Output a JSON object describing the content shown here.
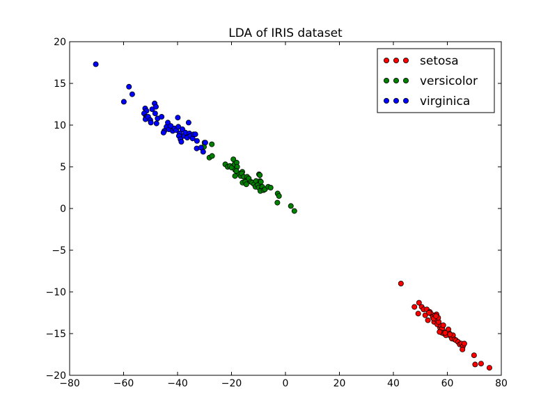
{
  "chart_data": {
    "type": "scatter",
    "title": "LDA of IRIS dataset",
    "xlabel": "",
    "ylabel": "",
    "xlim": [
      -80,
      80
    ],
    "ylim": [
      -20,
      20
    ],
    "xticks": [
      -80,
      -60,
      -40,
      -20,
      0,
      20,
      40,
      60,
      80
    ],
    "yticks": [
      -20,
      -15,
      -10,
      -5,
      0,
      5,
      10,
      15,
      20
    ],
    "xtick_labels": [
      "−80",
      "−60",
      "−40",
      "−20",
      "0",
      "20",
      "40",
      "60",
      "80"
    ],
    "ytick_labels": [
      "−20",
      "−15",
      "−10",
      "−5",
      "0",
      "5",
      "10",
      "15",
      "20"
    ],
    "grid": false,
    "legend_position": "top-right",
    "series": [
      {
        "name": "setosa",
        "color": "#ff0000",
        "points": [
          [
            42.8,
            -9.0
          ],
          [
            47.8,
            -11.8
          ],
          [
            49.5,
            -11.3
          ],
          [
            49.2,
            -12.6
          ],
          [
            50.5,
            -11.8
          ],
          [
            51.2,
            -12.1
          ],
          [
            51.8,
            -12.8
          ],
          [
            52.4,
            -12.1
          ],
          [
            52.8,
            -13.4
          ],
          [
            53.5,
            -12.4
          ],
          [
            53.9,
            -12.6
          ],
          [
            54.6,
            -13.0
          ],
          [
            55.1,
            -13.6
          ],
          [
            55.4,
            -12.8
          ],
          [
            56.0,
            -13.3
          ],
          [
            56.3,
            -13.9
          ],
          [
            56.8,
            -13.6
          ],
          [
            57.3,
            -14.3
          ],
          [
            57.7,
            -14.1
          ],
          [
            58.1,
            -14.4
          ],
          [
            58.0,
            -14.9
          ],
          [
            58.8,
            -15.0
          ],
          [
            59.5,
            -15.2
          ],
          [
            60.0,
            -14.7
          ],
          [
            60.4,
            -14.5
          ],
          [
            60.8,
            -15.0
          ],
          [
            61.2,
            -15.3
          ],
          [
            61.7,
            -15.6
          ],
          [
            62.1,
            -15.2
          ],
          [
            62.7,
            -15.7
          ],
          [
            63.2,
            -15.8
          ],
          [
            64.0,
            -16.0
          ],
          [
            64.6,
            -16.3
          ],
          [
            65.2,
            -16.2
          ],
          [
            65.8,
            -16.5
          ],
          [
            66.3,
            -16.2
          ],
          [
            65.6,
            -16.9
          ],
          [
            56.0,
            -12.7
          ],
          [
            56.6,
            -13.1
          ],
          [
            59.2,
            -14.9
          ],
          [
            57.1,
            -14.8
          ],
          [
            58.5,
            -14.0
          ],
          [
            61.0,
            -15.1
          ],
          [
            53.2,
            -12.5
          ],
          [
            54.9,
            -13.2
          ],
          [
            69.9,
            -17.6
          ],
          [
            70.3,
            -18.7
          ],
          [
            72.5,
            -18.6
          ],
          [
            75.6,
            -19.1
          ],
          [
            55.8,
            -12.9
          ]
        ]
      },
      {
        "name": "versicolor",
        "color": "#008000",
        "points": [
          [
            -30.0,
            7.9
          ],
          [
            -30.2,
            7.4
          ],
          [
            -27.3,
            7.7
          ],
          [
            -28.2,
            6.1
          ],
          [
            -27.2,
            6.3
          ],
          [
            -22.3,
            5.3
          ],
          [
            -21.4,
            5.0
          ],
          [
            -20.6,
            5.1
          ],
          [
            -19.9,
            4.9
          ],
          [
            -19.3,
            5.9
          ],
          [
            -18.9,
            5.3
          ],
          [
            -18.1,
            5.5
          ],
          [
            -18.6,
            4.6
          ],
          [
            -17.9,
            5.0
          ],
          [
            -17.4,
            4.2
          ],
          [
            -18.2,
            4.5
          ],
          [
            -18.7,
            3.9
          ],
          [
            -16.6,
            3.9
          ],
          [
            -16.0,
            4.4
          ],
          [
            -16.2,
            4.2
          ],
          [
            -15.5,
            3.8
          ],
          [
            -14.6,
            3.4
          ],
          [
            -15.9,
            3.1
          ],
          [
            -14.9,
            3.2
          ],
          [
            -14.5,
            2.9
          ],
          [
            -14.2,
            3.8
          ],
          [
            -13.6,
            3.6
          ],
          [
            -12.8,
            3.2
          ],
          [
            -12.3,
            3.1
          ],
          [
            -11.6,
            2.9
          ],
          [
            -11.1,
            2.6
          ],
          [
            -10.9,
            3.3
          ],
          [
            -10.3,
            2.8
          ],
          [
            -9.9,
            2.5
          ],
          [
            -9.8,
            4.1
          ],
          [
            -9.5,
            4.0
          ],
          [
            -9.4,
            3.3
          ],
          [
            -9.1,
            3.2
          ],
          [
            -8.8,
            2.4
          ],
          [
            -9.3,
            2.1
          ],
          [
            -8.6,
            2.6
          ],
          [
            -8.1,
            2.2
          ],
          [
            -7.6,
            2.3
          ],
          [
            -6.4,
            2.6
          ],
          [
            -5.5,
            2.5
          ],
          [
            -2.9,
            1.8
          ],
          [
            -2.4,
            1.5
          ],
          [
            -3.0,
            0.7
          ],
          [
            2.0,
            0.3
          ],
          [
            3.3,
            -0.3
          ]
        ]
      },
      {
        "name": "virginica",
        "color": "#0000ff",
        "points": [
          [
            -70.3,
            17.3
          ],
          [
            -59.9,
            12.8
          ],
          [
            -58.0,
            14.6
          ],
          [
            -56.8,
            13.7
          ],
          [
            -52.0,
            12.0
          ],
          [
            -51.5,
            11.7
          ],
          [
            -52.4,
            11.4
          ],
          [
            -51.7,
            11.0
          ],
          [
            -51.6,
            10.9
          ],
          [
            -51.9,
            10.7
          ],
          [
            -50.9,
            11.0
          ],
          [
            -50.1,
            10.6
          ],
          [
            -49.9,
            10.3
          ],
          [
            -49.4,
            11.9
          ],
          [
            -48.5,
            12.6
          ],
          [
            -48.0,
            12.2
          ],
          [
            -48.3,
            11.4
          ],
          [
            -47.4,
            10.8
          ],
          [
            -47.8,
            10.2
          ],
          [
            -45.9,
            11.0
          ],
          [
            -44.9,
            9.3
          ],
          [
            -45.2,
            9.1
          ],
          [
            -44.1,
            9.8
          ],
          [
            -43.6,
            10.3
          ],
          [
            -43.2,
            9.5
          ],
          [
            -42.5,
            9.9
          ],
          [
            -41.8,
            9.3
          ],
          [
            -41.1,
            9.6
          ],
          [
            -40.5,
            9.4
          ],
          [
            -39.9,
            10.9
          ],
          [
            -39.7,
            9.8
          ],
          [
            -39.2,
            9.0
          ],
          [
            -39.5,
            8.7
          ],
          [
            -38.9,
            8.3
          ],
          [
            -38.6,
            8.0
          ],
          [
            -38.2,
            9.5
          ],
          [
            -37.6,
            8.7
          ],
          [
            -37.1,
            9.1
          ],
          [
            -36.4,
            8.5
          ],
          [
            -35.9,
            10.3
          ],
          [
            -35.6,
            9.0
          ],
          [
            -35.2,
            8.7
          ],
          [
            -34.4,
            8.4
          ],
          [
            -34.0,
            8.9
          ],
          [
            -33.4,
            8.9
          ],
          [
            -32.8,
            8.1
          ],
          [
            -32.9,
            7.2
          ],
          [
            -31.3,
            7.3
          ],
          [
            -30.5,
            6.8
          ],
          [
            -29.7,
            7.9
          ]
        ]
      }
    ]
  }
}
